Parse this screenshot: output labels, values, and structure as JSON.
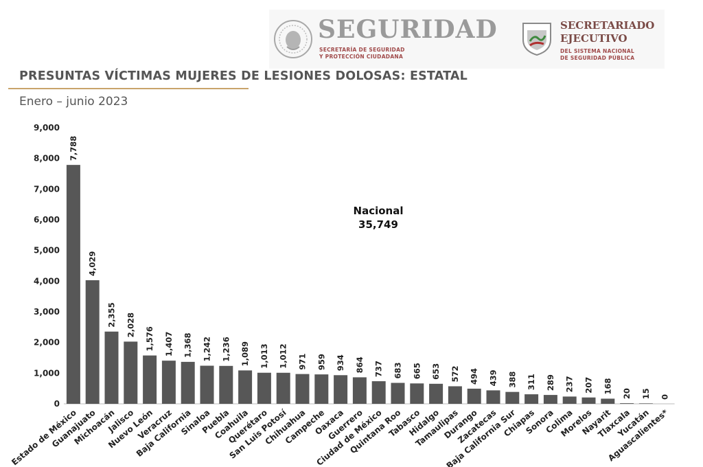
{
  "header": {
    "seguridad_word": "SEGURIDAD",
    "seguridad_sub_1": "SECRETARÍA DE SEGURIDAD",
    "seguridad_sub_2": "Y PROTECCIÓN CIUDADANA",
    "secretariado_line_1": "SECRETARIADO",
    "secretariado_line_2": "EJECUTIVO",
    "secretariado_sub_1": "DEL SISTEMA NACIONAL",
    "secretariado_sub_2": "DE SEGURIDAD PÚBLICA"
  },
  "colors": {
    "bar": "#575757",
    "title": "#555555",
    "rule": "#c9a36a",
    "shield": "#8a2a2a"
  },
  "chart_data": {
    "type": "bar",
    "title": "PRESUNTAS VÍCTIMAS MUJERES DE LESIONES DOLOSAS: ESTATAL",
    "subtitle": "Enero – junio 2023",
    "annotation_label": "Nacional",
    "annotation_value": "35,749",
    "ylim": [
      0,
      9000
    ],
    "yticks": [
      "0",
      "1,000",
      "2,000",
      "3,000",
      "4,000",
      "5,000",
      "6,000",
      "7,000",
      "8,000",
      "9,000"
    ],
    "grid": false,
    "categories": [
      "Estado de México",
      "Guanajuato",
      "Michoacán",
      "Jalisco",
      "Nuevo León",
      "Veracruz",
      "Baja California",
      "Sinaloa",
      "Puebla",
      "Coahuila",
      "Querétaro",
      "San Luis Potosí",
      "Chihuahua",
      "Campeche",
      "Oaxaca",
      "Guerrero",
      "Ciudad de México",
      "Quintana Roo",
      "Tabasco",
      "Hidalgo",
      "Tamaulipas",
      "Durango",
      "Zacatecas",
      "Baja California Sur",
      "Chiapas",
      "Sonora",
      "Colima",
      "Morelos",
      "Nayarit",
      "Tlaxcala",
      "Yucatán",
      "Aguascalientes*"
    ],
    "values": [
      7788,
      4029,
      2355,
      2028,
      1576,
      1407,
      1368,
      1242,
      1236,
      1089,
      1013,
      1012,
      971,
      959,
      934,
      864,
      737,
      683,
      665,
      653,
      572,
      494,
      439,
      388,
      311,
      289,
      237,
      207,
      168,
      20,
      15,
      0
    ],
    "value_labels": [
      "7,788",
      "4,029",
      "2,355",
      "2,028",
      "1,576",
      "1,407",
      "1,368",
      "1,242",
      "1,236",
      "1,089",
      "1,013",
      "1,012",
      "971",
      "959",
      "934",
      "864",
      "737",
      "683",
      "665",
      "653",
      "572",
      "494",
      "439",
      "388",
      "311",
      "289",
      "237",
      "207",
      "168",
      "20",
      "15",
      "0"
    ]
  }
}
